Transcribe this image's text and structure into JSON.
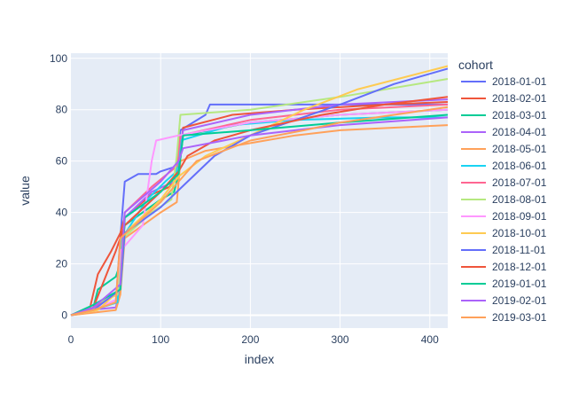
{
  "chart_data": {
    "type": "line",
    "xlabel": "index",
    "ylabel": "value",
    "xlim": [
      0,
      420
    ],
    "ylim": [
      -5,
      102
    ],
    "xticks": [
      0,
      100,
      200,
      300,
      400
    ],
    "yticks": [
      0,
      20,
      40,
      60,
      80,
      100
    ],
    "grid": true,
    "legend": {
      "title": "cohort",
      "position": "right"
    },
    "series": [
      {
        "name": "2018-01-01",
        "color": "#636efa",
        "points": [
          [
            0,
            0
          ],
          [
            25,
            2
          ],
          [
            50,
            5
          ],
          [
            55,
            30
          ],
          [
            60,
            52
          ],
          [
            75,
            55
          ],
          [
            95,
            55
          ],
          [
            100,
            56
          ],
          [
            118,
            58
          ],
          [
            122,
            72
          ],
          [
            150,
            78
          ],
          [
            155,
            82
          ],
          [
            200,
            82
          ],
          [
            300,
            82
          ],
          [
            420,
            82
          ]
        ]
      },
      {
        "name": "2018-02-01",
        "color": "#EF553B",
        "points": [
          [
            0,
            0
          ],
          [
            20,
            1
          ],
          [
            30,
            16
          ],
          [
            45,
            25
          ],
          [
            55,
            32
          ],
          [
            60,
            38
          ],
          [
            90,
            47
          ],
          [
            110,
            50
          ],
          [
            120,
            56
          ],
          [
            125,
            73
          ],
          [
            180,
            78
          ],
          [
            250,
            80
          ],
          [
            350,
            82
          ],
          [
            420,
            83
          ]
        ]
      },
      {
        "name": "2018-03-01",
        "color": "#00cc96",
        "points": [
          [
            0,
            0
          ],
          [
            25,
            3
          ],
          [
            30,
            10
          ],
          [
            50,
            15
          ],
          [
            55,
            20
          ],
          [
            60,
            35
          ],
          [
            100,
            45
          ],
          [
            115,
            48
          ],
          [
            120,
            55
          ],
          [
            125,
            70
          ],
          [
            200,
            75
          ],
          [
            300,
            78
          ],
          [
            420,
            80
          ]
        ]
      },
      {
        "name": "2018-04-01",
        "color": "#ab63fa",
        "points": [
          [
            0,
            0
          ],
          [
            20,
            2
          ],
          [
            50,
            3
          ],
          [
            55,
            10
          ],
          [
            60,
            38
          ],
          [
            90,
            48
          ],
          [
            115,
            52
          ],
          [
            120,
            60
          ],
          [
            125,
            72
          ],
          [
            200,
            78
          ],
          [
            300,
            82
          ],
          [
            420,
            84
          ]
        ]
      },
      {
        "name": "2018-05-01",
        "color": "#FFA15A",
        "points": [
          [
            0,
            0
          ],
          [
            25,
            1
          ],
          [
            50,
            2
          ],
          [
            55,
            8
          ],
          [
            60,
            30
          ],
          [
            100,
            40
          ],
          [
            118,
            44
          ],
          [
            122,
            60
          ],
          [
            150,
            64
          ],
          [
            200,
            67
          ],
          [
            250,
            70
          ],
          [
            300,
            72
          ],
          [
            420,
            74
          ]
        ]
      },
      {
        "name": "2018-06-01",
        "color": "#19d3f3",
        "points": [
          [
            0,
            0
          ],
          [
            25,
            2
          ],
          [
            52,
            5
          ],
          [
            57,
            30
          ],
          [
            85,
            45
          ],
          [
            105,
            52
          ],
          [
            118,
            56
          ],
          [
            122,
            68
          ],
          [
            180,
            74
          ],
          [
            250,
            76
          ],
          [
            350,
            77
          ],
          [
            420,
            77
          ]
        ]
      },
      {
        "name": "2018-07-01",
        "color": "#FF6692",
        "points": [
          [
            0,
            0
          ],
          [
            25,
            3
          ],
          [
            50,
            8
          ],
          [
            55,
            18
          ],
          [
            60,
            40
          ],
          [
            90,
            50
          ],
          [
            118,
            58
          ],
          [
            122,
            70
          ],
          [
            200,
            76
          ],
          [
            300,
            80
          ],
          [
            420,
            82
          ]
        ]
      },
      {
        "name": "2018-08-01",
        "color": "#B6E880",
        "points": [
          [
            0,
            0
          ],
          [
            25,
            4
          ],
          [
            52,
            8
          ],
          [
            58,
            30
          ],
          [
            90,
            40
          ],
          [
            112,
            45
          ],
          [
            118,
            62
          ],
          [
            122,
            78
          ],
          [
            200,
            80
          ],
          [
            300,
            85
          ],
          [
            420,
            92
          ]
        ]
      },
      {
        "name": "2018-09-01",
        "color": "#FF97FF",
        "points": [
          [
            0,
            0
          ],
          [
            25,
            2
          ],
          [
            50,
            6
          ],
          [
            55,
            25
          ],
          [
            80,
            35
          ],
          [
            90,
            60
          ],
          [
            95,
            68
          ],
          [
            120,
            70
          ],
          [
            200,
            75
          ],
          [
            300,
            78
          ],
          [
            420,
            80
          ]
        ]
      },
      {
        "name": "2018-10-01",
        "color": "#FECB52",
        "points": [
          [
            0,
            0
          ],
          [
            30,
            2
          ],
          [
            55,
            10
          ],
          [
            60,
            32
          ],
          [
            100,
            45
          ],
          [
            120,
            54
          ],
          [
            150,
            62
          ],
          [
            200,
            70
          ],
          [
            260,
            80
          ],
          [
            320,
            88
          ],
          [
            420,
            97
          ]
        ]
      },
      {
        "name": "2018-11-01",
        "color": "#636efa",
        "points": [
          [
            0,
            0
          ],
          [
            25,
            2
          ],
          [
            55,
            10
          ],
          [
            60,
            32
          ],
          [
            100,
            42
          ],
          [
            130,
            52
          ],
          [
            160,
            62
          ],
          [
            200,
            70
          ],
          [
            250,
            76
          ],
          [
            300,
            82
          ],
          [
            360,
            90
          ],
          [
            420,
            96
          ]
        ]
      },
      {
        "name": "2018-12-01",
        "color": "#EF553B",
        "points": [
          [
            0,
            0
          ],
          [
            25,
            3
          ],
          [
            50,
            25
          ],
          [
            60,
            35
          ],
          [
            100,
            48
          ],
          [
            120,
            56
          ],
          [
            130,
            62
          ],
          [
            160,
            68
          ],
          [
            200,
            72
          ],
          [
            280,
            78
          ],
          [
            350,
            82
          ],
          [
            420,
            85
          ]
        ]
      },
      {
        "name": "2019-01-01",
        "color": "#00cc96",
        "points": [
          [
            0,
            0
          ],
          [
            25,
            4
          ],
          [
            55,
            10
          ],
          [
            60,
            38
          ],
          [
            100,
            48
          ],
          [
            120,
            55
          ],
          [
            125,
            70
          ],
          [
            200,
            72
          ],
          [
            300,
            75
          ],
          [
            420,
            78
          ]
        ]
      },
      {
        "name": "2019-02-01",
        "color": "#ab63fa",
        "points": [
          [
            0,
            0
          ],
          [
            25,
            3
          ],
          [
            55,
            12
          ],
          [
            60,
            40
          ],
          [
            100,
            52
          ],
          [
            120,
            60
          ],
          [
            125,
            65
          ],
          [
            200,
            70
          ],
          [
            300,
            74
          ],
          [
            420,
            77
          ]
        ]
      },
      {
        "name": "2019-03-01",
        "color": "#FFA15A",
        "points": [
          [
            0,
            0
          ],
          [
            25,
            2
          ],
          [
            50,
            5
          ],
          [
            55,
            30
          ],
          [
            100,
            44
          ],
          [
            120,
            52
          ],
          [
            140,
            60
          ],
          [
            200,
            68
          ],
          [
            260,
            72
          ],
          [
            300,
            75
          ],
          [
            420,
            81
          ]
        ]
      }
    ]
  }
}
